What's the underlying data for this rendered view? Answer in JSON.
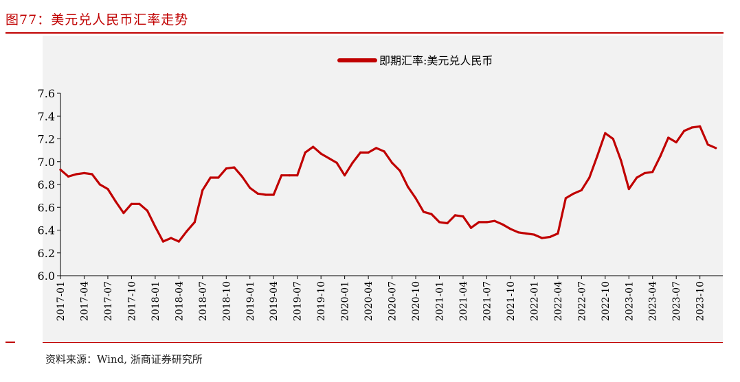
{
  "figure": {
    "label": "图77：",
    "title": "美元兑人民币汇率走势",
    "source": "资料来源：Wind, 浙商证券研究所"
  },
  "colors": {
    "accent": "#c00000",
    "series": "#c00000",
    "plot_bg": "#f2f2f2"
  },
  "chart_data": {
    "type": "line",
    "title": "美元兑人民币汇率走势",
    "xlabel": "",
    "ylabel": "",
    "ylim": [
      6.0,
      7.6
    ],
    "yticks": [
      "6.0",
      "6.2",
      "6.4",
      "6.6",
      "6.8",
      "7.0",
      "7.2",
      "7.4",
      "7.6"
    ],
    "xticks": [
      "2017-01",
      "2017-04",
      "2017-07",
      "2017-10",
      "2018-01",
      "2018-04",
      "2018-07",
      "2018-10",
      "2019-01",
      "2019-04",
      "2019-07",
      "2019-10",
      "2020-01",
      "2020-04",
      "2020-07",
      "2020-10",
      "2021-01",
      "2021-04",
      "2021-07",
      "2021-10",
      "2022-01",
      "2022-04",
      "2022-07",
      "2022-10",
      "2023-01",
      "2023-04",
      "2023-07",
      "2023-10"
    ],
    "x_end": "2023-12",
    "grid": false,
    "legend": "top-center",
    "series": [
      {
        "name": "即期汇率:美元兑人民币",
        "x": [
          "2017-01",
          "2017-02",
          "2017-03",
          "2017-04",
          "2017-05",
          "2017-06",
          "2017-07",
          "2017-08",
          "2017-09",
          "2017-10",
          "2017-11",
          "2017-12",
          "2018-01",
          "2018-02",
          "2018-03",
          "2018-04",
          "2018-05",
          "2018-06",
          "2018-07",
          "2018-08",
          "2018-09",
          "2018-10",
          "2018-11",
          "2018-12",
          "2019-01",
          "2019-02",
          "2019-03",
          "2019-04",
          "2019-05",
          "2019-06",
          "2019-07",
          "2019-08",
          "2019-09",
          "2019-10",
          "2019-11",
          "2019-12",
          "2020-01",
          "2020-02",
          "2020-03",
          "2020-04",
          "2020-05",
          "2020-06",
          "2020-07",
          "2020-08",
          "2020-09",
          "2020-10",
          "2020-11",
          "2020-12",
          "2021-01",
          "2021-02",
          "2021-03",
          "2021-04",
          "2021-05",
          "2021-06",
          "2021-07",
          "2021-08",
          "2021-09",
          "2021-10",
          "2021-11",
          "2021-12",
          "2022-01",
          "2022-02",
          "2022-03",
          "2022-04",
          "2022-05",
          "2022-06",
          "2022-07",
          "2022-08",
          "2022-09",
          "2022-10",
          "2022-11",
          "2022-12",
          "2023-01",
          "2023-02",
          "2023-03",
          "2023-04",
          "2023-05",
          "2023-06",
          "2023-07",
          "2023-08",
          "2023-09",
          "2023-10",
          "2023-11",
          "2023-12"
        ],
        "values": [
          6.93,
          6.87,
          6.89,
          6.9,
          6.89,
          6.8,
          6.76,
          6.65,
          6.55,
          6.63,
          6.63,
          6.57,
          6.43,
          6.3,
          6.33,
          6.3,
          6.39,
          6.47,
          6.75,
          6.86,
          6.86,
          6.94,
          6.95,
          6.87,
          6.77,
          6.72,
          6.71,
          6.71,
          6.88,
          6.88,
          6.88,
          7.08,
          7.13,
          7.07,
          7.03,
          6.99,
          6.88,
          6.99,
          7.08,
          7.08,
          7.12,
          7.09,
          6.99,
          6.92,
          6.78,
          6.68,
          6.56,
          6.54,
          6.47,
          6.46,
          6.53,
          6.52,
          6.42,
          6.47,
          6.47,
          6.48,
          6.45,
          6.41,
          6.38,
          6.37,
          6.36,
          6.33,
          6.34,
          6.37,
          6.68,
          6.72,
          6.75,
          6.86,
          7.05,
          7.25,
          7.2,
          7.01,
          6.76,
          6.86,
          6.9,
          6.91,
          7.05,
          7.21,
          7.17,
          7.27,
          7.3,
          7.31,
          7.15,
          7.12
        ]
      }
    ]
  }
}
